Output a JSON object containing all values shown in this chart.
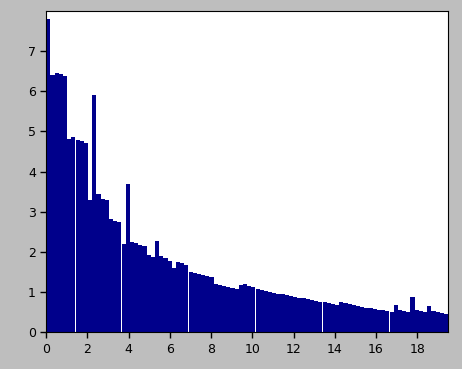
{
  "bar_color": "#00008B",
  "bg_color": "#bebebe",
  "plot_bg_color": "#ffffff",
  "xlim": [
    0,
    19.5
  ],
  "ylim": [
    0,
    8.0
  ],
  "xticks": [
    0,
    2,
    4,
    6,
    8,
    10,
    12,
    14,
    16,
    18
  ],
  "yticks": [
    0,
    1,
    2,
    3,
    4,
    5,
    6,
    7
  ],
  "values": [
    7.8,
    6.4,
    6.45,
    6.42,
    6.38,
    4.82,
    4.85,
    4.78,
    4.75,
    4.7,
    3.3,
    5.9,
    3.45,
    3.32,
    3.28,
    2.82,
    2.78,
    2.75,
    2.2,
    3.7,
    2.25,
    2.22,
    2.18,
    2.15,
    1.92,
    1.88,
    2.28,
    1.9,
    1.85,
    1.78,
    1.6,
    1.75,
    1.72,
    1.68,
    1.5,
    1.48,
    1.45,
    1.42,
    1.4,
    1.38,
    1.2,
    1.18,
    1.15,
    1.12,
    1.1,
    1.08,
    1.18,
    1.2,
    1.15,
    1.12,
    1.08,
    1.05,
    1.02,
    1.0,
    0.98,
    0.96,
    0.94,
    0.92,
    0.9,
    0.88,
    0.86,
    0.84,
    0.82,
    0.8,
    0.78,
    0.76,
    0.74,
    0.72,
    0.7,
    0.68,
    0.75,
    0.72,
    0.7,
    0.68,
    0.65,
    0.63,
    0.61,
    0.6,
    0.58,
    0.56,
    0.54,
    0.52,
    0.5,
    0.68,
    0.55,
    0.53,
    0.51,
    0.88,
    0.55,
    0.53,
    0.51,
    0.65,
    0.52,
    0.5,
    0.48,
    0.46,
    0.55
  ],
  "n_bars": 97
}
